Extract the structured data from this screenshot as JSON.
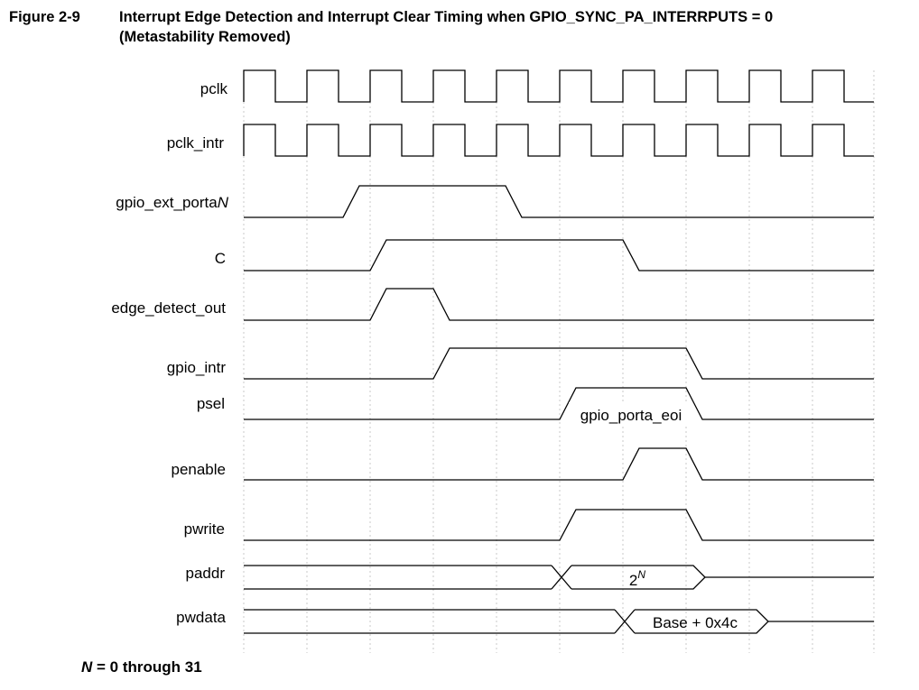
{
  "figure": {
    "number": "Figure 2-9",
    "title_line1": "Interrupt Edge Detection and Interrupt Clear Timing when GPIO_SYNC_PA_INTERRPUTS = 0",
    "title_line2": "(Metastability Removed)"
  },
  "signals": [
    {
      "id": "pclk",
      "label": "pclk"
    },
    {
      "id": "pclk_intr",
      "label": "pclk_intr"
    },
    {
      "id": "gpio_ext_porta",
      "label": "gpio_ext_porta",
      "label_suffix": "N"
    },
    {
      "id": "c",
      "label": "C"
    },
    {
      "id": "edge_detect_out",
      "label": "edge_detect_out"
    },
    {
      "id": "gpio_intr",
      "label": "gpio_intr"
    },
    {
      "id": "psel",
      "label": "psel"
    },
    {
      "id": "penable",
      "label": "penable"
    },
    {
      "id": "pwrite",
      "label": "pwrite"
    },
    {
      "id": "paddr",
      "label": "paddr"
    },
    {
      "id": "pwdata",
      "label": "pwdata"
    }
  ],
  "annotations": {
    "psel_register": "gpio_porta_eoi",
    "paddr_value_base": "2",
    "paddr_value_exp": "N",
    "pwdata_value": "Base + 0x4c"
  },
  "footnote": {
    "var": "N",
    "text": " = 0 through 31"
  },
  "colors": {
    "line": "#000000",
    "grid": "#c8c8c8",
    "background": "#ffffff"
  }
}
